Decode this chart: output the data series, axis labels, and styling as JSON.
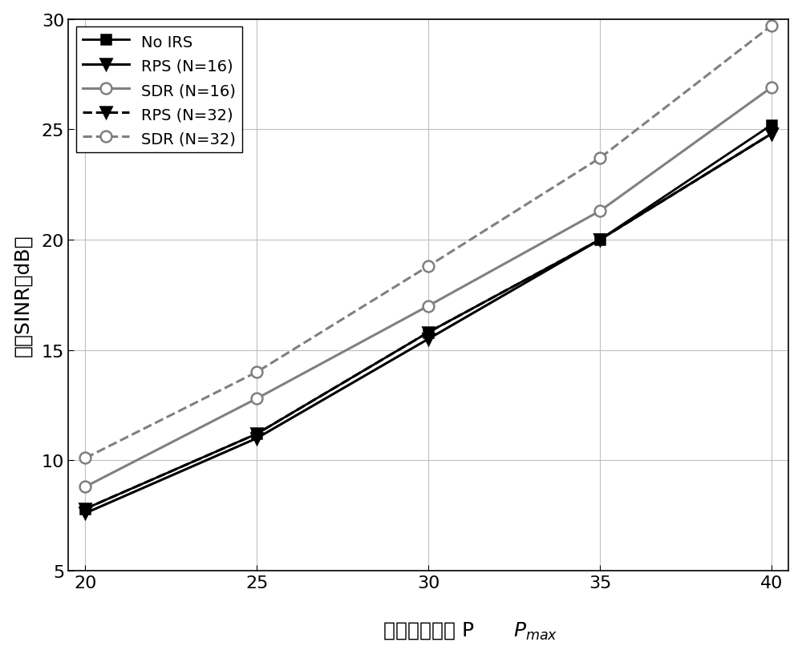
{
  "x": [
    20,
    25,
    30,
    35,
    40
  ],
  "no_irs": [
    7.8,
    11.2,
    15.8,
    20.0,
    25.2
  ],
  "rps_n16": [
    7.6,
    11.0,
    15.5,
    20.0,
    24.8
  ],
  "sdr_n16": [
    8.8,
    12.8,
    17.0,
    21.3,
    26.9
  ],
  "rps_n32": [
    7.8,
    11.2,
    15.8,
    20.0,
    24.8
  ],
  "sdr_n32": [
    10.1,
    14.0,
    18.8,
    23.7,
    29.7
  ],
  "xlabel_cn": "最大发射功率 P",
  "ylabel_cn": "最小SINR（dB）",
  "xlim": [
    19.5,
    40.5
  ],
  "ylim": [
    5,
    30
  ],
  "xticks": [
    20,
    25,
    30,
    35,
    40
  ],
  "yticks": [
    5,
    10,
    15,
    20,
    25,
    30
  ],
  "legend_labels": [
    "No IRS",
    "RPS (N=16)",
    "SDR (N=16)",
    "RPS (N=32)",
    "SDR (N=32)"
  ],
  "line_colors": [
    "#000000",
    "#000000",
    "#808080",
    "#000000",
    "#808080"
  ],
  "line_styles": [
    "-",
    "-",
    "-",
    "--",
    "--"
  ],
  "line_widths": [
    2.0,
    2.2,
    2.2,
    2.2,
    2.2
  ],
  "markers": [
    "s",
    "v",
    "o",
    "v",
    "o"
  ],
  "marker_sizes": [
    8,
    10,
    10,
    10,
    10
  ],
  "bg_color": "#ffffff",
  "grid_color": "#c0c0c0"
}
